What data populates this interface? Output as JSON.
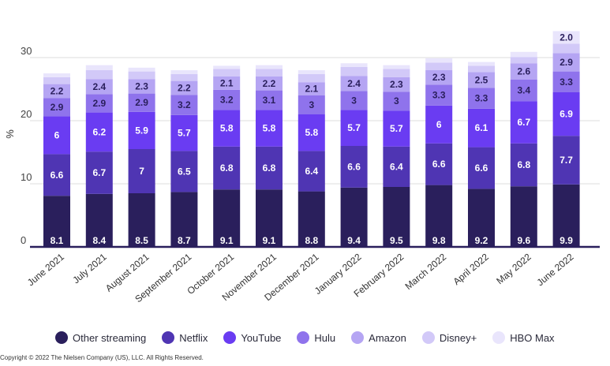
{
  "chart_data": {
    "type": "bar",
    "stacked": true,
    "ylabel": "%",
    "ylim": [
      0,
      35
    ],
    "yticks": [
      0,
      10,
      20,
      30
    ],
    "categories": [
      "June 2021",
      "July 2021",
      "August 2021",
      "September 2021",
      "October 2021",
      "November 2021",
      "December 2021",
      "January 2022",
      "February 2022",
      "March 2022",
      "April 2022",
      "May 2022",
      "June 2022"
    ],
    "series": [
      {
        "name": "Other streaming",
        "color": "#2a1f5c",
        "values": [
          8.1,
          8.4,
          8.5,
          8.7,
          9.1,
          9.1,
          8.8,
          9.4,
          9.5,
          9.8,
          9.2,
          9.6,
          9.9
        ]
      },
      {
        "name": "Netflix",
        "color": "#4f35b3",
        "values": [
          6.6,
          6.7,
          7,
          6.5,
          6.8,
          6.8,
          6.4,
          6.6,
          6.4,
          6.6,
          6.6,
          6.8,
          7.7
        ]
      },
      {
        "name": "YouTube",
        "color": "#6a3cf2",
        "values": [
          6,
          6.2,
          5.9,
          5.7,
          5.8,
          5.8,
          5.8,
          5.7,
          5.7,
          6,
          6.1,
          6.7,
          6.9
        ]
      },
      {
        "name": "Hulu",
        "color": "#8f73ec",
        "values": [
          2.9,
          2.9,
          2.9,
          3.2,
          3.2,
          3.1,
          3,
          3,
          3,
          3.3,
          3.3,
          3.4,
          3.3
        ]
      },
      {
        "name": "Amazon",
        "color": "#b5a5f3",
        "values": [
          2.2,
          2.4,
          2.3,
          2.2,
          2.1,
          2.2,
          2.1,
          2.4,
          2.3,
          2.3,
          2.5,
          2.6,
          2.9
        ]
      },
      {
        "name": "Disney+",
        "color": "#d2c9f8",
        "values": [
          1.1,
          1.4,
          1.2,
          1.1,
          1.2,
          1.2,
          1.3,
          1.4,
          1.3,
          1.2,
          1.0,
          1.0,
          1.5
        ]
      },
      {
        "name": "HBO Max",
        "color": "#e9e5fc",
        "values": [
          0.6,
          0.8,
          0.6,
          0.6,
          0.5,
          0.6,
          0.6,
          0.6,
          0.6,
          0.7,
          0.6,
          0.8,
          2.0
        ]
      }
    ],
    "labeled_series": [
      "Other streaming",
      "Netflix",
      "YouTube",
      "Hulu",
      "Amazon"
    ],
    "labeled_last_value": {
      "series": "HBO Max",
      "value": "2.0"
    },
    "legend_position": "bottom"
  },
  "copyright": "Copyright © 2022 The Nielsen Company (US), LLC. All Rights Reserved."
}
